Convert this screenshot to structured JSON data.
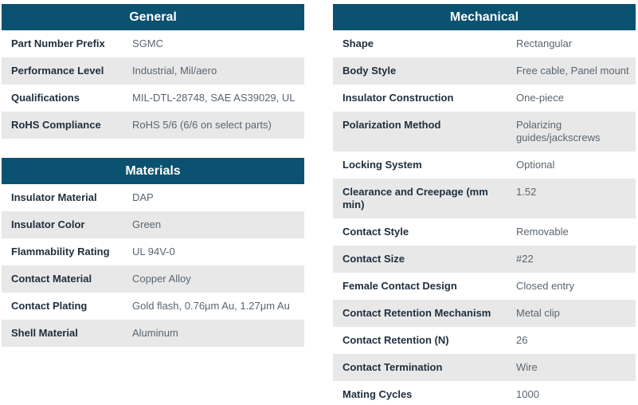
{
  "colors": {
    "header_bg": "#0b5170",
    "header_text": "#ffffff",
    "alt_row_bg": "#e8e8e8",
    "label_text": "#1f2e3d",
    "value_text": "#5a6570"
  },
  "tables": [
    {
      "title": "General",
      "rows": [
        {
          "label": "Part Number Prefix",
          "value": "SGMC"
        },
        {
          "label": "Performance Level",
          "value": "Industrial, Mil/aero"
        },
        {
          "label": "Qualifications",
          "value": "MIL-DTL-28748, SAE AS39029, UL"
        },
        {
          "label": "RoHS Compliance",
          "value": "RoHS 5/6 (6/6 on select parts)"
        }
      ]
    },
    {
      "title": "Materials",
      "rows": [
        {
          "label": "Insulator Material",
          "value": "DAP"
        },
        {
          "label": "Insulator Color",
          "value": "Green"
        },
        {
          "label": "Flammability Rating",
          "value": "UL 94V-0"
        },
        {
          "label": "Contact Material",
          "value": "Copper Alloy"
        },
        {
          "label": "Contact Plating",
          "value": "Gold flash, 0.76μm Au, 1.27μm Au"
        },
        {
          "label": "Shell Material",
          "value": "Aluminum"
        }
      ]
    },
    {
      "title": "Mechanical",
      "rows": [
        {
          "label": "Shape",
          "value": "Rectangular"
        },
        {
          "label": "Body Style",
          "value": "Free cable, Panel mount"
        },
        {
          "label": "Insulator Construction",
          "value": "One-piece"
        },
        {
          "label": "Polarization Method",
          "value": "Polarizing guides/jackscrews"
        },
        {
          "label": "Locking System",
          "value": "Optional"
        },
        {
          "label": "Clearance and Creepage (mm min)",
          "value": "1.52"
        },
        {
          "label": "Contact Style",
          "value": "Removable"
        },
        {
          "label": "Contact Size",
          "value": "#22"
        },
        {
          "label": "Female Contact Design",
          "value": "Closed entry"
        },
        {
          "label": "Contact Retention Mechanism",
          "value": "Metal clip"
        },
        {
          "label": "Contact Retention (N)",
          "value": "26"
        },
        {
          "label": "Contact Termination",
          "value": "Wire"
        },
        {
          "label": "Mating Cycles",
          "value": "1000"
        }
      ]
    }
  ]
}
